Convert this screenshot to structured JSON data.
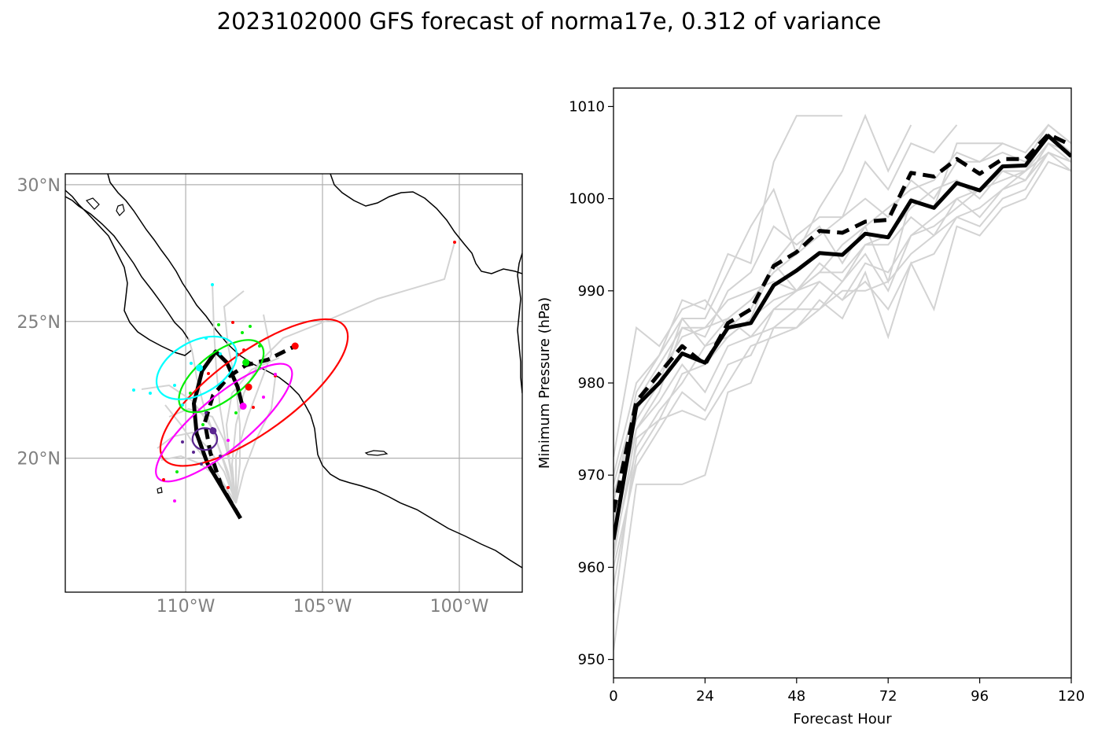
{
  "title": "2023102000 GFS forecast of norma17e, 0.312 of variance",
  "chart_data": [
    {
      "type": "map",
      "lat_ticks": [
        {
          "value": 30,
          "label": "30°N"
        },
        {
          "value": 25,
          "label": "25°N"
        },
        {
          "value": 20,
          "label": "20°N"
        }
      ],
      "lon_ticks": [
        {
          "value": -110,
          "label": "110°W"
        },
        {
          "value": -105,
          "label": "105°W"
        },
        {
          "value": -100,
          "label": "100°W"
        }
      ],
      "lon_range": [
        -114.4,
        -97.7
      ],
      "lat_range": [
        15.1,
        30.4
      ],
      "grid": true,
      "mean_track": [
        [
          -108.0,
          17.8
        ],
        [
          -108.6,
          18.8
        ],
        [
          -109.2,
          19.8
        ],
        [
          -109.6,
          20.9
        ],
        [
          -109.7,
          22.0
        ],
        [
          -109.4,
          23.2
        ],
        [
          -108.9,
          23.9
        ],
        [
          -108.5,
          23.5
        ],
        [
          -108.1,
          22.6
        ],
        [
          -107.9,
          21.8
        ]
      ],
      "ensemble_mean_track": [
        [
          -108.0,
          17.8
        ],
        [
          -108.7,
          19.0
        ],
        [
          -109.1,
          20.2
        ],
        [
          -109.3,
          21.3
        ],
        [
          -109.0,
          22.3
        ],
        [
          -108.4,
          23.0
        ],
        [
          -107.8,
          23.4
        ],
        [
          -107.0,
          23.6
        ],
        [
          -106.0,
          24.1
        ]
      ],
      "ellipses": [
        {
          "color": "#ff0000",
          "center": [
            -107.5,
            22.4
          ],
          "a_deg": 8.2,
          "b_deg": 2.9,
          "angle_deg": 36
        },
        {
          "color": "#ff00ff",
          "center": [
            -108.6,
            21.3
          ],
          "a_deg": 6.3,
          "b_deg": 1.9,
          "angle_deg": 40
        },
        {
          "color": "#00ee00",
          "center": [
            -108.7,
            23.0
          ],
          "a_deg": 3.7,
          "b_deg": 1.7,
          "angle_deg": 38
        },
        {
          "color": "#00ffff",
          "center": [
            -109.6,
            23.3
          ],
          "a_deg": 3.2,
          "b_deg": 1.9,
          "angle_deg": 30
        },
        {
          "color": "#5a2590",
          "center": [
            -109.3,
            20.7
          ],
          "a_deg": 0.9,
          "b_deg": 0.8,
          "angle_deg": 0
        }
      ],
      "ellipse_centers": [
        {
          "color": "#ff0000",
          "pos": [
            -106.0,
            24.1
          ]
        },
        {
          "color": "#ff0000",
          "pos": [
            -107.7,
            22.6
          ]
        },
        {
          "color": "#ff00ff",
          "pos": [
            -107.9,
            21.9
          ]
        },
        {
          "color": "#00ee00",
          "pos": [
            -107.8,
            23.5
          ]
        },
        {
          "color": "#00ffff",
          "pos": [
            -109.5,
            23.3
          ]
        },
        {
          "color": "#5a2590",
          "pos": [
            -109.0,
            21.0
          ]
        }
      ]
    },
    {
      "type": "line",
      "xlabel": "Forecast Hour",
      "ylabel": "Minimum Pressure (hPa)",
      "xlim": [
        0,
        120
      ],
      "ylim": [
        948,
        1012
      ],
      "xticks": [
        0,
        24,
        48,
        72,
        96,
        120
      ],
      "yticks": [
        950,
        960,
        970,
        980,
        990,
        1000,
        1010
      ],
      "x": [
        0,
        6,
        12,
        18,
        24,
        30,
        36,
        42,
        48,
        54,
        60,
        66,
        72,
        78,
        84,
        90,
        96,
        102,
        108,
        114,
        120
      ],
      "series": [
        {
          "style": "solid",
          "color": "#000000",
          "values": [
            963,
            977.5,
            980,
            983.2,
            982.2,
            986,
            986.5,
            990.6,
            992.2,
            994.1,
            993.9,
            996.2,
            995.8,
            999.8,
            999.0,
            1001.7,
            1000.9,
            1003.5,
            1003.6,
            1006.8,
            1004.6
          ]
        },
        {
          "style": "dashed",
          "color": "#000000",
          "values": [
            966,
            978,
            981,
            984,
            982,
            986.5,
            988,
            992.7,
            994.2,
            996.5,
            996.3,
            997.5,
            997.7,
            1002.8,
            1002.4,
            1004.3,
            1002.7,
            1004.3,
            1004.3,
            1007.0,
            1005.8
          ]
        }
      ],
      "ensemble_members": [
        [
          951,
          969,
          969,
          969,
          970,
          979,
          980,
          986,
          986,
          988,
          991,
          995,
          996,
          999,
          1001,
          1002,
          1000,
          1003,
          1003,
          1005,
          1003
        ],
        [
          972,
          986,
          984,
          988,
          989,
          986,
          988,
          993,
          996,
          998,
          998,
          1004,
          1001,
          1006,
          1005,
          1008
        ],
        [
          970,
          980,
          983,
          989,
          988,
          994,
          993,
          1004,
          1009,
          1009,
          1009
        ],
        [
          968,
          976,
          980,
          987,
          987,
          992,
          997,
          1001,
          994,
          999,
          1003,
          1009,
          1003,
          1008
        ],
        [
          965,
          975,
          979,
          986,
          985,
          990,
          992,
          997,
          995,
          997,
          993,
          997,
          991,
          1000,
          999,
          1006,
          1006,
          1006
        ],
        [
          962,
          973,
          977,
          980,
          984,
          985,
          987,
          993,
          990,
          993,
          991,
          994,
          990,
          996,
          998,
          1000,
          998,
          1001,
          1002,
          1005,
          1004
        ],
        [
          960,
          971,
          975,
          979,
          977,
          982,
          983,
          988,
          988,
          991,
          989,
          991,
          988,
          993,
          994,
          998,
          997,
          1000,
          1001,
          1005,
          1004
        ],
        [
          958,
          972,
          976,
          977,
          976,
          980,
          984,
          985,
          986,
          989,
          987,
          992,
          985,
          993,
          988,
          997,
          996,
          999,
          1000,
          1004,
          1003
        ],
        [
          955,
          974,
          976,
          981,
          982,
          985,
          987,
          989,
          990,
          992,
          992,
          995,
          995,
          998,
          996,
          1000,
          1001,
          1003,
          1002,
          1006,
          1005
        ],
        [
          964,
          977,
          981,
          985,
          986,
          989,
          990,
          991,
          990,
          992,
          995,
          997,
          999,
          1001,
          1002,
          1005,
          1004,
          1006,
          1005,
          1008,
          1006
        ],
        [
          969,
          978,
          982,
          986,
          986,
          987,
          985,
          988,
          990,
          991,
          989,
          993,
          992,
          996,
          997,
          999,
          1001,
          1002,
          1003,
          1007,
          1005
        ],
        [
          961,
          975,
          978,
          982,
          979,
          984,
          985,
          986,
          988,
          988,
          990,
          990,
          991,
          994,
          996,
          998,
          999,
          1001,
          1003,
          1006,
          1004
        ],
        [
          967,
          979,
          983,
          987,
          984,
          987,
          989,
          992,
          994,
          996,
          998,
          1000,
          998,
          1002,
          1000,
          1004,
          1004,
          1005,
          1004,
          1008,
          1006
        ]
      ]
    }
  ]
}
